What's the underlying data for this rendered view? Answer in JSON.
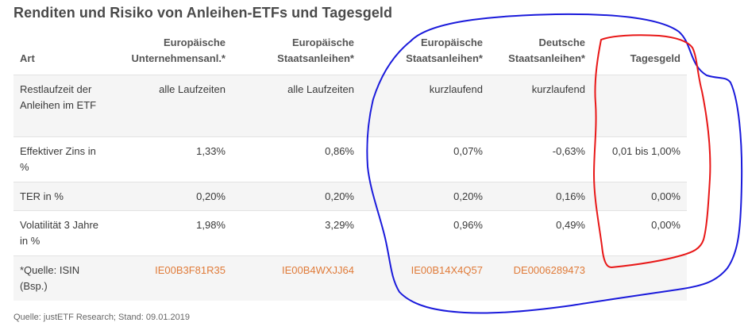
{
  "title": "Renditen und Risiko von Anleihen-ETFs und Tagesgeld",
  "table": {
    "headers": [
      {
        "line1": "",
        "line2": "Art"
      },
      {
        "line1": "Europäische",
        "line2": "Unternehmensanl.*"
      },
      {
        "line1": "Europäische",
        "line2": "Staatsanleihen*"
      },
      {
        "line1": "Europäische",
        "line2": "Staatsanleihen*"
      },
      {
        "line1": "Deutsche",
        "line2": "Staatsanleihen*"
      },
      {
        "line1": "",
        "line2": "Tagesgeld"
      }
    ],
    "rows": [
      {
        "label": "Restlaufzeit der Anleihen im ETF",
        "cells": [
          "alle Laufzeiten",
          "alle Laufzeiten",
          "kurzlaufend",
          "kurzlaufend",
          ""
        ]
      },
      {
        "label": "Effektiver Zins in %",
        "cells": [
          "1,33%",
          "0,86%",
          "0,07%",
          "-0,63%",
          "0,01 bis 1,00%"
        ]
      },
      {
        "label": "TER in %",
        "cells": [
          "0,20%",
          "0,20%",
          "0,20%",
          "0,16%",
          "0,00%"
        ]
      },
      {
        "label": "Volatilität 3 Jahre in %",
        "cells": [
          "1,98%",
          "3,29%",
          "0,96%",
          "0,49%",
          "0,00%"
        ]
      },
      {
        "label": "*Quelle: ISIN (Bsp.)",
        "cells": [
          "IE00B3F81R35",
          "IE00B4WXJJ64",
          "IE00B14X4Q57",
          "DE0006289473",
          ""
        ]
      }
    ]
  },
  "source_note": "Quelle: justETF Research; Stand: 09.01.2019",
  "colors": {
    "isin_link": "#e07b39",
    "annotation_blue": "#1a1adb",
    "annotation_red": "#e81818",
    "row_shade": "#f5f5f5"
  }
}
